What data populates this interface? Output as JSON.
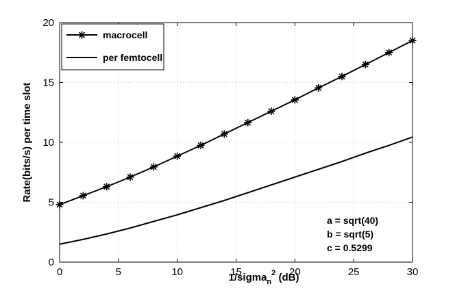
{
  "chart_data": {
    "type": "line",
    "xlabel_main": "1/sigma",
    "xlabel_sub": "n",
    "xlabel_sup": "2",
    "xlabel_tail": " (dB)",
    "ylabel": "Rate(bits/s) per time slot",
    "xlim": [
      0,
      30
    ],
    "ylim": [
      0,
      20
    ],
    "x_ticks": [
      0,
      5,
      10,
      15,
      20,
      25,
      30
    ],
    "y_ticks": [
      0,
      5,
      10,
      15,
      20
    ],
    "grid": true,
    "legend_position": "top-left",
    "series": [
      {
        "name": "macrocell",
        "marker": "asterisk",
        "color": "#000000",
        "x": [
          0,
          2,
          4,
          6,
          8,
          10,
          12,
          14,
          16,
          18,
          20,
          22,
          24,
          26,
          28,
          30
        ],
        "values": [
          4.8,
          5.55,
          6.3,
          7.1,
          7.95,
          8.85,
          9.75,
          10.7,
          11.65,
          12.6,
          13.55,
          14.55,
          15.5,
          16.5,
          17.5,
          18.5
        ]
      },
      {
        "name": "per femtocell",
        "marker": "none",
        "color": "#000000",
        "x": [
          0,
          2,
          4,
          6,
          8,
          10,
          12,
          14,
          16,
          18,
          20,
          22,
          24,
          26,
          28,
          30
        ],
        "values": [
          1.5,
          1.9,
          2.35,
          2.85,
          3.4,
          3.95,
          4.55,
          5.15,
          5.8,
          6.45,
          7.1,
          7.75,
          8.4,
          9.1,
          9.75,
          10.45
        ]
      }
    ],
    "annotations": [
      "a = sqrt(40)",
      "b = sqrt(5)",
      "c = 0.5299"
    ]
  }
}
